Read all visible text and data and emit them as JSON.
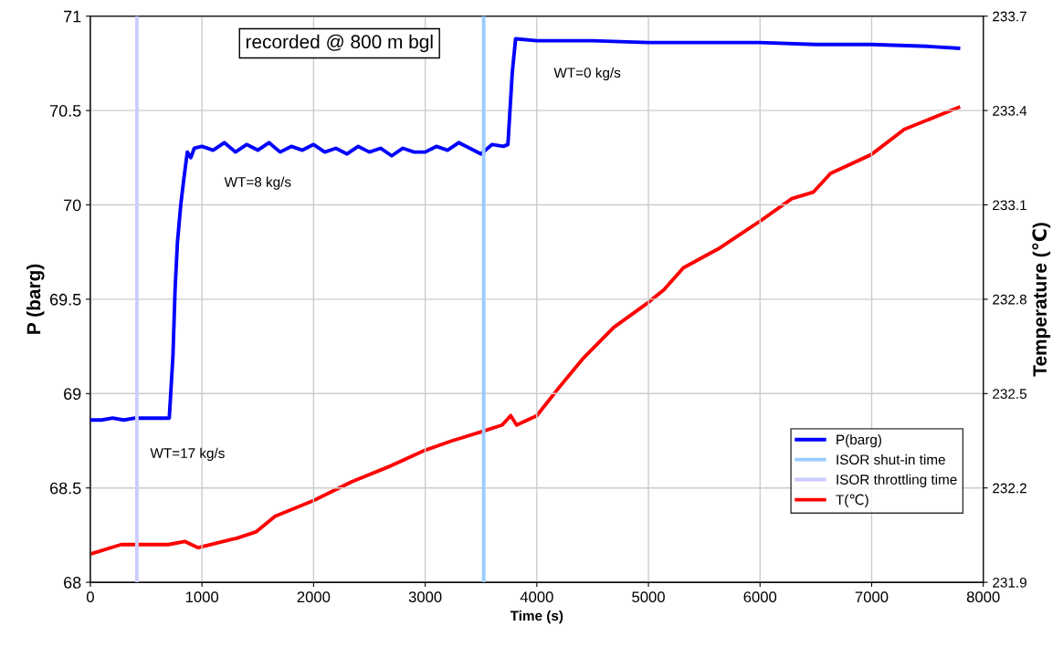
{
  "chart_data": {
    "type": "line",
    "xlabel": "Time (s)",
    "ylabel": "P (barg)",
    "y2label": "Temperature (℃)",
    "xlim": [
      0,
      8000
    ],
    "xticks": [
      0,
      1000,
      2000,
      3000,
      4000,
      5000,
      6000,
      7000,
      8000
    ],
    "ylim": [
      68,
      71
    ],
    "yticks": [
      68,
      68.5,
      69,
      69.5,
      70,
      70.5,
      71
    ],
    "y2lim": [
      231.9,
      233.7
    ],
    "y2ticks": [
      231.9,
      232.2,
      232.5,
      232.8,
      233.1,
      233.4,
      233.7
    ],
    "grid": true,
    "legend": "bottom right",
    "marker": "none",
    "line_style": "solid",
    "series": [
      {
        "name": "P(barg)",
        "color": "#0000ff",
        "x": [
          0,
          100,
          200,
          300,
          400,
          500,
          600,
          707,
          740,
          759,
          780,
          810,
          840,
          869,
          900,
          931,
          1000,
          1100,
          1200,
          1300,
          1400,
          1500,
          1600,
          1700,
          1800,
          1900,
          2000,
          2100,
          2200,
          2300,
          2400,
          2500,
          2600,
          2700,
          2800,
          2900,
          3000,
          3100,
          3200,
          3300,
          3400,
          3500,
          3600,
          3700,
          3741,
          3780,
          3810,
          4000,
          4500,
          5000,
          5500,
          6000,
          6500,
          7000,
          7500,
          7778
        ],
        "values": [
          68.86,
          68.86,
          68.87,
          68.86,
          68.87,
          68.87,
          68.87,
          68.87,
          69.2,
          69.55,
          69.8,
          70.0,
          70.15,
          70.28,
          70.25,
          70.3,
          70.31,
          70.29,
          70.33,
          70.28,
          70.32,
          70.29,
          70.33,
          70.28,
          70.31,
          70.29,
          70.32,
          70.28,
          70.3,
          70.27,
          70.31,
          70.28,
          70.3,
          70.26,
          70.3,
          70.28,
          70.28,
          70.31,
          70.29,
          70.33,
          70.3,
          70.27,
          70.32,
          70.31,
          70.32,
          70.7,
          70.88,
          70.87,
          70.87,
          70.86,
          70.86,
          70.86,
          70.85,
          70.85,
          70.84,
          70.83
        ]
      },
      {
        "name": "ISOR shut-in time",
        "color": "#99ccff",
        "x": [
          3524,
          3524
        ],
        "values": [
          68,
          71
        ]
      },
      {
        "name": "ISOR throttling time",
        "color": "#ccccff",
        "x": [
          417,
          417
        ],
        "values": [
          68,
          71
        ]
      },
      {
        "name": "T(℃)",
        "color": "#ff0000",
        "axis": "y2",
        "x": [
          0,
          276,
          400,
          700,
          845,
          966,
          1310,
          1483,
          1655,
          2000,
          2345,
          2690,
          3000,
          3241,
          3517,
          3690,
          3766,
          3819,
          4000,
          4201,
          4410,
          4688,
          5000,
          5139,
          5313,
          5625,
          6007,
          6285,
          6476,
          6632,
          6997,
          7292,
          7778
        ],
        "values": [
          231.99,
          232.02,
          232.02,
          232.02,
          232.03,
          232.01,
          232.04,
          232.06,
          232.11,
          232.16,
          232.22,
          232.27,
          232.32,
          232.35,
          232.38,
          232.4,
          232.43,
          232.4,
          232.43,
          232.52,
          232.61,
          232.71,
          232.79,
          232.83,
          232.9,
          232.96,
          233.05,
          233.12,
          233.14,
          233.2,
          233.26,
          233.34,
          233.41
        ]
      }
    ],
    "annotations": [
      "recorded @ 800 m bgl",
      "WT=17 kg/s",
      "WT=8 kg/s",
      "WT=0 kg/s"
    ]
  }
}
